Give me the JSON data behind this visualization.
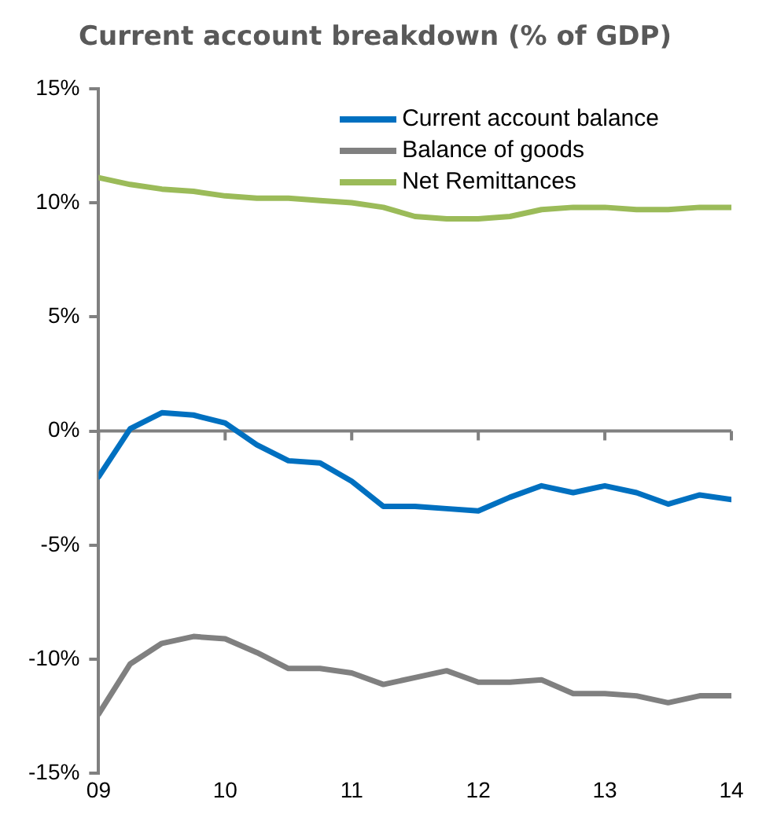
{
  "chart_data": {
    "type": "line",
    "title": "Current account breakdown (% of GDP)",
    "x": [
      2009,
      2009.25,
      2009.5,
      2009.75,
      2010,
      2010.25,
      2010.5,
      2010.75,
      2011,
      2011.25,
      2011.5,
      2011.75,
      2012,
      2012.25,
      2012.5,
      2012.75,
      2013,
      2013.25,
      2013.5,
      2013.75,
      2014
    ],
    "series": [
      {
        "name": "Current account balance",
        "color": "#0070c0",
        "values": [
          -2.0,
          0.1,
          0.8,
          0.7,
          0.35,
          -0.6,
          -1.3,
          -1.4,
          -2.2,
          -3.3,
          -3.3,
          -3.4,
          -3.5,
          -2.9,
          -2.4,
          -2.7,
          -2.4,
          -2.7,
          -3.2,
          -2.8,
          -3.0
        ]
      },
      {
        "name": "Balance of goods",
        "color": "#808080",
        "values": [
          -12.4,
          -10.2,
          -9.3,
          -9.0,
          -9.1,
          -9.7,
          -10.4,
          -10.4,
          -10.6,
          -11.1,
          -10.8,
          -10.5,
          -11.0,
          -11.0,
          -10.9,
          -11.5,
          -11.5,
          -11.6,
          -11.9,
          -11.6,
          -11.6
        ]
      },
      {
        "name": "Net Remittances",
        "color": "#9bbb59",
        "values": [
          11.1,
          10.8,
          10.6,
          10.5,
          10.3,
          10.2,
          10.2,
          10.1,
          10.0,
          9.8,
          9.4,
          9.3,
          9.3,
          9.4,
          9.7,
          9.8,
          9.8,
          9.7,
          9.7,
          9.8,
          9.8
        ]
      }
    ],
    "xlim": [
      2009,
      2014
    ],
    "xticks": [
      {
        "value": 2009,
        "label": "09"
      },
      {
        "value": 2010,
        "label": "10"
      },
      {
        "value": 2011,
        "label": "11"
      },
      {
        "value": 2012,
        "label": "12"
      },
      {
        "value": 2013,
        "label": "13"
      },
      {
        "value": 2014,
        "label": "14"
      }
    ],
    "ylim": [
      -15,
      15
    ],
    "yticks": [
      {
        "value": -15,
        "label": "-15%"
      },
      {
        "value": -10,
        "label": "-10%"
      },
      {
        "value": -5,
        "label": "-5%"
      },
      {
        "value": 0,
        "label": "0%"
      },
      {
        "value": 5,
        "label": "5%"
      },
      {
        "value": 10,
        "label": "10%"
      },
      {
        "value": 15,
        "label": "15%"
      }
    ],
    "ref_lines": [
      {
        "axis": "y",
        "value": 0,
        "color": "#808080"
      }
    ],
    "grid": false,
    "legend": "top right",
    "marker": "none",
    "line_style": "solid"
  }
}
